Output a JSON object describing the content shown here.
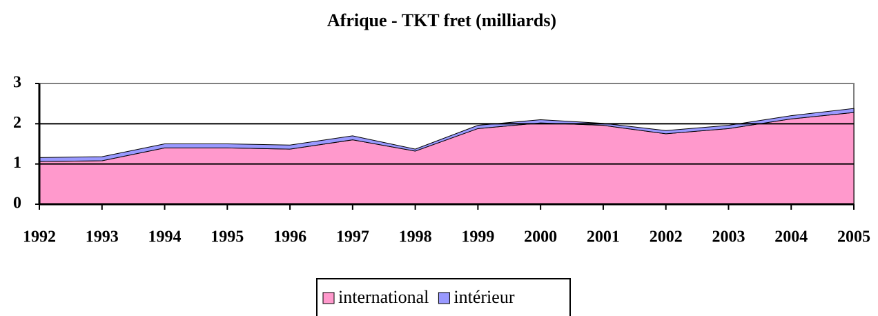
{
  "chart_data": {
    "type": "stacked_area",
    "title": "Afrique - TKT fret (milliards)",
    "categories": [
      "1992",
      "1993",
      "1994",
      "1995",
      "1996",
      "1997",
      "1998",
      "1999",
      "2000",
      "2001",
      "2002",
      "2003",
      "2004",
      "2005"
    ],
    "series": [
      {
        "name": "international",
        "color": "#ff99cc",
        "values": [
          1.06,
          1.08,
          1.4,
          1.4,
          1.37,
          1.6,
          1.32,
          1.88,
          2.02,
          1.96,
          1.75,
          1.88,
          2.12,
          2.28
        ]
      },
      {
        "name": "intérieur",
        "color": "#9999ff",
        "values": [
          0.1,
          0.1,
          0.1,
          0.1,
          0.1,
          0.1,
          0.05,
          0.08,
          0.08,
          0.05,
          0.08,
          0.08,
          0.08,
          0.1
        ]
      }
    ],
    "ylim": [
      0,
      3
    ],
    "yticks": [
      0,
      1,
      2,
      3
    ],
    "grid": true,
    "legend": "bottom"
  }
}
